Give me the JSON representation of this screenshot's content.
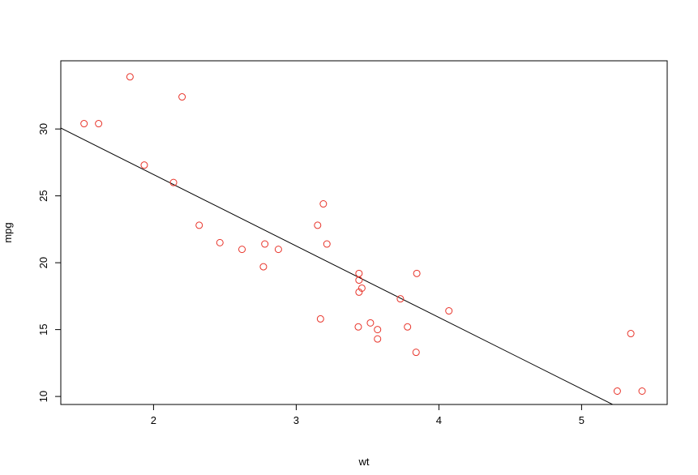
{
  "chart_data": {
    "type": "scatter",
    "title": "",
    "xlabel": "wt",
    "ylabel": "mpg",
    "xlim": [
      1.35,
      5.6
    ],
    "ylim": [
      9.4,
      35.1
    ],
    "xticks": [
      2,
      3,
      4,
      5
    ],
    "yticks": [
      10,
      15,
      20,
      25,
      30
    ],
    "grid": false,
    "legend": "none",
    "point_color": "#e8342a",
    "line_color": "#000000",
    "points": {
      "x": [
        2.62,
        2.875,
        2.32,
        3.215,
        3.44,
        3.46,
        3.57,
        3.19,
        3.15,
        3.44,
        3.44,
        4.07,
        3.73,
        3.78,
        5.25,
        5.424,
        5.345,
        2.2,
        1.615,
        1.835,
        2.465,
        3.52,
        3.435,
        3.84,
        3.845,
        1.935,
        2.14,
        1.513,
        3.17,
        2.77,
        3.57,
        2.78
      ],
      "y": [
        21.0,
        21.0,
        22.8,
        21.4,
        18.7,
        18.1,
        14.3,
        24.4,
        22.8,
        19.2,
        17.8,
        16.4,
        17.3,
        15.2,
        10.4,
        10.4,
        14.7,
        32.4,
        30.4,
        33.9,
        21.5,
        15.5,
        15.2,
        13.3,
        19.2,
        27.3,
        26.0,
        30.4,
        15.8,
        19.7,
        15.0,
        21.4
      ]
    },
    "fit_line": {
      "intercept": 37.285,
      "slope": -5.344
    }
  }
}
